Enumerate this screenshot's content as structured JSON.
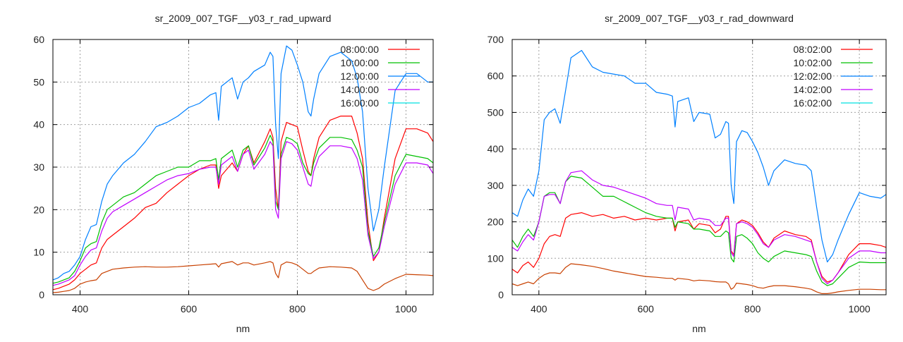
{
  "chart_data": [
    {
      "type": "line",
      "title": "sr_2009_007_TGF__y03_r_rad_upward",
      "xlabel": "nm",
      "ylabel": "",
      "xlim": [
        350,
        1050
      ],
      "ylim": [
        0,
        60
      ],
      "xticks": [
        400,
        600,
        800,
        1000
      ],
      "yticks": [
        0,
        10,
        20,
        30,
        40,
        50,
        60
      ],
      "grid": true,
      "legend_position": "top-right",
      "x": [
        350,
        360,
        370,
        380,
        390,
        400,
        410,
        420,
        430,
        440,
        450,
        460,
        480,
        500,
        520,
        540,
        560,
        580,
        600,
        620,
        640,
        650,
        655,
        660,
        680,
        690,
        700,
        710,
        720,
        740,
        750,
        755,
        760,
        765,
        770,
        780,
        790,
        800,
        810,
        820,
        825,
        830,
        840,
        860,
        880,
        900,
        910,
        920,
        930,
        940,
        950,
        960,
        980,
        1000,
        1020,
        1040,
        1050
      ],
      "series": [
        {
          "name": "08:00:00",
          "color": "#ff0000",
          "legend_color": "#ff0000",
          "values": [
            1.2,
            1.5,
            2,
            2.5,
            3.5,
            5,
            6,
            7,
            7.5,
            11,
            13,
            14,
            16,
            18,
            20.5,
            21.5,
            24,
            26,
            28,
            29.5,
            30.5,
            30.5,
            25,
            28,
            31,
            29,
            33,
            35,
            31,
            36,
            39,
            37,
            25,
            20,
            36,
            40.5,
            40,
            39.5,
            34,
            29,
            28,
            32,
            37,
            41,
            42,
            42,
            38,
            32,
            17,
            8,
            10,
            18,
            32,
            39,
            39,
            38,
            36
          ]
        },
        {
          "name": "10:00:00",
          "color": "#00c000",
          "legend_color": "#00c000",
          "values": [
            2.7,
            3,
            3.5,
            4,
            5.5,
            8,
            11,
            12,
            12.5,
            17,
            20,
            21,
            23,
            24,
            26,
            28,
            29,
            30,
            30,
            31.5,
            31.5,
            32,
            27,
            32,
            34,
            30,
            34,
            35,
            30.5,
            34.5,
            37.5,
            36,
            22,
            20,
            33,
            37,
            36.5,
            35.5,
            31,
            28.5,
            28,
            31,
            34.5,
            37,
            37,
            36.5,
            34,
            30,
            15,
            9,
            11,
            17,
            28,
            33,
            32.5,
            32,
            31
          ]
        },
        {
          "name": "12:00:00",
          "color": "#0080ff",
          "legend_color": "#0080ff",
          "values": [
            3.5,
            4,
            5,
            5.5,
            7,
            9,
            13,
            16,
            16.5,
            22,
            26,
            28,
            31,
            33,
            36,
            39.5,
            40.5,
            42,
            44,
            45,
            47,
            47.5,
            41,
            49,
            51,
            46,
            50,
            51,
            52.5,
            54,
            57,
            56,
            40,
            32,
            52,
            58.5,
            57.5,
            54,
            50,
            43,
            42,
            46,
            52,
            56,
            57,
            55,
            51,
            43,
            25,
            15,
            20,
            30,
            48,
            52,
            52,
            50,
            50
          ]
        },
        {
          "name": "14:00:00",
          "color": "#c000ff",
          "legend_color": "#c000ff",
          "values": [
            2.2,
            2.5,
            3,
            3.5,
            4.5,
            7,
            9,
            10.5,
            11,
            15,
            18,
            19.5,
            21,
            22.5,
            24,
            25.5,
            27,
            28,
            28.5,
            29.5,
            30,
            30,
            26,
            30.5,
            32.5,
            29,
            33,
            34,
            29.5,
            33,
            36,
            35,
            20,
            18,
            32,
            36,
            35.5,
            34,
            30,
            26,
            25.5,
            29,
            32.5,
            35,
            35,
            34.5,
            32,
            27,
            14,
            8.5,
            10,
            16,
            26,
            31,
            31,
            30.5,
            28.5
          ]
        },
        {
          "name": "16:00:00",
          "color": "#c84000",
          "legend_color": "#00e0e0",
          "values": [
            0.5,
            0.6,
            0.8,
            1,
            1.5,
            2.5,
            3,
            3.3,
            3.5,
            5,
            5.5,
            6,
            6.3,
            6.5,
            6.6,
            6.5,
            6.5,
            6.6,
            6.8,
            7,
            7.2,
            7.3,
            6.5,
            7.3,
            7.8,
            7,
            7.5,
            7.5,
            7,
            7.5,
            7.8,
            7.5,
            5,
            4,
            7,
            7.7,
            7.5,
            7,
            6,
            5,
            5,
            5.5,
            6.3,
            6.6,
            6.5,
            6.3,
            5.5,
            3.5,
            1.5,
            1,
            1.5,
            2.5,
            3.8,
            4.8,
            4.7,
            4.6,
            4.5
          ]
        }
      ]
    },
    {
      "type": "line",
      "title": "sr_2009_007_TGF__y03_r_rad_downward",
      "xlabel": "nm",
      "ylabel": "",
      "xlim": [
        350,
        1050
      ],
      "ylim": [
        0,
        700
      ],
      "xticks": [
        400,
        600,
        800,
        1000
      ],
      "yticks": [
        0,
        100,
        200,
        300,
        400,
        500,
        600,
        700
      ],
      "grid": true,
      "legend_position": "top-right",
      "x": [
        350,
        360,
        370,
        380,
        390,
        400,
        410,
        420,
        430,
        440,
        450,
        460,
        480,
        500,
        520,
        540,
        560,
        580,
        600,
        620,
        640,
        650,
        655,
        660,
        680,
        690,
        700,
        720,
        730,
        740,
        750,
        755,
        760,
        765,
        770,
        780,
        790,
        800,
        810,
        820,
        830,
        840,
        860,
        880,
        900,
        910,
        920,
        930,
        940,
        950,
        960,
        980,
        1000,
        1020,
        1040,
        1050
      ],
      "series": [
        {
          "name": "08:02:00",
          "color": "#ff0000",
          "legend_color": "#ff0000",
          "values": [
            70,
            60,
            80,
            90,
            75,
            100,
            140,
            160,
            165,
            160,
            210,
            220,
            225,
            215,
            220,
            210,
            215,
            205,
            210,
            205,
            210,
            210,
            175,
            200,
            205,
            180,
            195,
            190,
            170,
            180,
            215,
            215,
            120,
            110,
            195,
            205,
            200,
            190,
            170,
            145,
            130,
            155,
            175,
            165,
            160,
            150,
            90,
            50,
            35,
            40,
            60,
            110,
            140,
            140,
            135,
            130
          ]
        },
        {
          "name": "10:02:00",
          "color": "#00c000",
          "legend_color": "#00c000",
          "values": [
            150,
            130,
            160,
            180,
            160,
            200,
            270,
            280,
            280,
            250,
            310,
            325,
            320,
            295,
            270,
            270,
            255,
            240,
            225,
            215,
            210,
            210,
            185,
            200,
            195,
            180,
            180,
            175,
            160,
            160,
            175,
            170,
            100,
            90,
            160,
            165,
            155,
            140,
            115,
            100,
            90,
            105,
            120,
            115,
            110,
            105,
            65,
            35,
            25,
            30,
            45,
            75,
            90,
            88,
            88,
            88
          ]
        },
        {
          "name": "12:02:00",
          "color": "#0080ff",
          "legend_color": "#0080ff",
          "values": [
            225,
            215,
            260,
            290,
            270,
            340,
            480,
            500,
            510,
            470,
            560,
            650,
            670,
            625,
            610,
            605,
            600,
            580,
            580,
            555,
            550,
            545,
            460,
            530,
            540,
            475,
            500,
            495,
            430,
            440,
            475,
            470,
            300,
            250,
            420,
            450,
            445,
            420,
            390,
            350,
            300,
            340,
            370,
            360,
            355,
            340,
            240,
            150,
            90,
            110,
            150,
            220,
            280,
            270,
            265,
            275
          ]
        },
        {
          "name": "14:02:00",
          "color": "#c000ff",
          "legend_color": "#c000ff",
          "values": [
            130,
            120,
            145,
            165,
            150,
            200,
            270,
            275,
            275,
            250,
            310,
            335,
            340,
            315,
            300,
            295,
            285,
            275,
            265,
            250,
            245,
            245,
            205,
            240,
            235,
            205,
            210,
            205,
            190,
            190,
            210,
            210,
            115,
            105,
            195,
            200,
            195,
            185,
            165,
            140,
            130,
            150,
            165,
            160,
            150,
            145,
            90,
            45,
            30,
            40,
            60,
            100,
            120,
            120,
            115,
            115
          ]
        },
        {
          "name": "16:02:00",
          "color": "#c84000",
          "legend_color": "#00e0e0",
          "values": [
            30,
            25,
            30,
            35,
            30,
            45,
            55,
            60,
            60,
            58,
            75,
            85,
            82,
            78,
            72,
            65,
            60,
            55,
            50,
            48,
            45,
            45,
            40,
            45,
            42,
            38,
            40,
            38,
            36,
            35,
            35,
            30,
            15,
            20,
            32,
            30,
            28,
            25,
            20,
            18,
            22,
            25,
            25,
            22,
            18,
            15,
            8,
            3,
            3,
            5,
            8,
            12,
            15,
            15,
            14,
            14
          ]
        }
      ]
    }
  ]
}
